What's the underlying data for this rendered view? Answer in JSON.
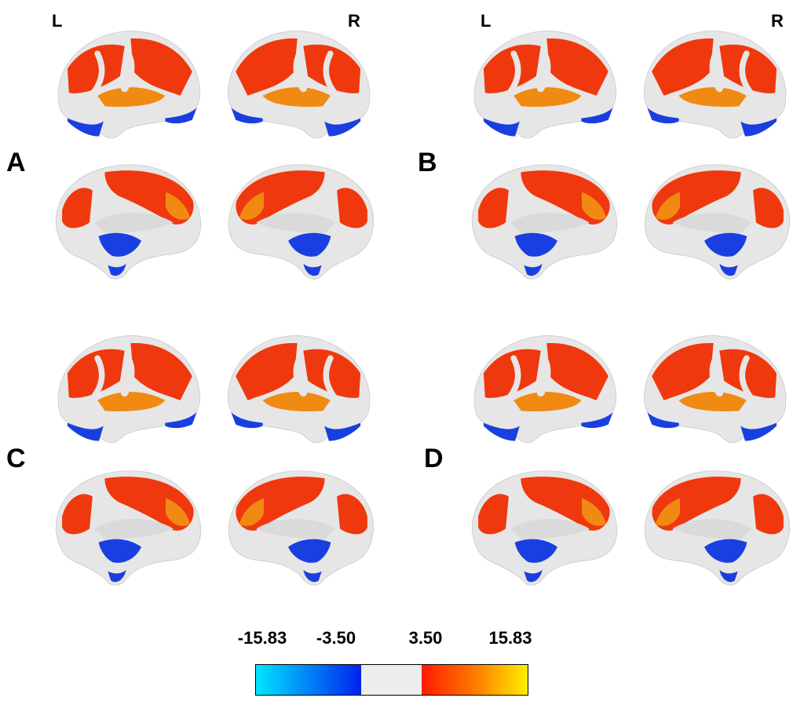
{
  "hemisphere_labels": {
    "left": "L",
    "right": "R"
  },
  "panels": [
    {
      "label": "A"
    },
    {
      "label": "B"
    },
    {
      "label": "C"
    },
    {
      "label": "D"
    }
  ],
  "colorbar": {
    "ticks": [
      "-15.83",
      "-3.50",
      "3.50",
      "15.83"
    ],
    "colors": {
      "neg_min": "#00e5ff",
      "neg_max": "#0022ee",
      "neutral": "#eeeeee",
      "pos_min": "#ff1a00",
      "pos_mid": "#ff7a00",
      "pos_max": "#ffee00"
    }
  },
  "colors": {
    "surface": "#e6e6e6",
    "activation": "#f0380e",
    "activation_peak": "#f08a12",
    "deactivation": "#1a3fe0"
  }
}
